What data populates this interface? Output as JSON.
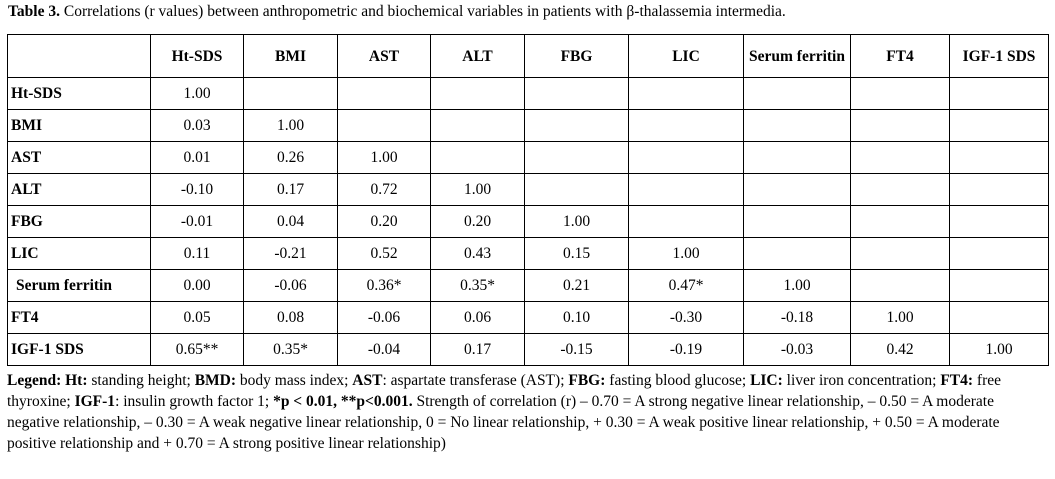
{
  "caption": {
    "label": "Table 3.",
    "text": " Correlations (r values) between anthropometric and biochemical variables  in patients with β-thalassemia intermedia."
  },
  "table": {
    "corner": "",
    "columns": [
      "Ht-SDS",
      "BMI",
      "AST",
      "ALT",
      "FBG",
      "LIC",
      "Serum ferritin",
      "FT4",
      "IGF-1 SDS"
    ],
    "rows": [
      {
        "label": "Ht-SDS",
        "cells": [
          "1.00",
          "",
          "",
          "",
          "",
          "",
          "",
          "",
          ""
        ]
      },
      {
        "label": "BMI",
        "cells": [
          "0.03",
          "1.00",
          "",
          "",
          "",
          "",
          "",
          "",
          ""
        ]
      },
      {
        "label": "AST",
        "cells": [
          "0.01",
          "0.26",
          "1.00",
          "",
          "",
          "",
          "",
          "",
          ""
        ]
      },
      {
        "label": "ALT",
        "cells": [
          "-0.10",
          "0.17",
          "0.72",
          "1.00",
          "",
          "",
          "",
          "",
          ""
        ]
      },
      {
        "label": "FBG",
        "cells": [
          "-0.01",
          "0.04",
          "0.20",
          "0.20",
          "1.00",
          "",
          "",
          "",
          ""
        ]
      },
      {
        "label": "LIC",
        "cells": [
          "0.11",
          "-0.21",
          "0.52",
          "0.43",
          "0.15",
          "1.00",
          "",
          "",
          ""
        ]
      },
      {
        "label": "Serum ferritin",
        "cells": [
          "0.00",
          "-0.06",
          "0.36*",
          "0.35*",
          "0.21",
          "0.47*",
          "1.00",
          "",
          ""
        ]
      },
      {
        "label": "FT4",
        "cells": [
          "0.05",
          "0.08",
          "-0.06",
          "0.06",
          "0.10",
          "-0.30",
          "-0.18",
          "1.00",
          ""
        ]
      },
      {
        "label": "IGF-1 SDS",
        "cells": [
          "0.65**",
          "0.35*",
          "-0.04",
          "0.17",
          "-0.15",
          "-0.19",
          "-0.03",
          "0.42",
          "1.00"
        ]
      }
    ]
  },
  "legend": {
    "segments": [
      {
        "text": "Legend: ",
        "bold": true
      },
      {
        "text": "Ht:",
        "bold": true
      },
      {
        "text": " standing height; ",
        "bold": false
      },
      {
        "text": "BMD:",
        "bold": true
      },
      {
        "text": " body mass index; ",
        "bold": false
      },
      {
        "text": "AST",
        "bold": true
      },
      {
        "text": ": aspartate transferase (AST); ",
        "bold": false
      },
      {
        "text": "FBG:",
        "bold": true
      },
      {
        "text": " fasting blood glucose; ",
        "bold": false
      },
      {
        "text": "LIC:",
        "bold": true
      },
      {
        "text": " liver iron concentration; ",
        "bold": false
      },
      {
        "text": "FT4:",
        "bold": true
      },
      {
        "text": " free thyroxine; ",
        "bold": false
      },
      {
        "text": "IGF-1",
        "bold": true
      },
      {
        "text": ": insulin growth factor 1; ",
        "bold": false
      },
      {
        "text": "*p < 0.01, **p<0.001.",
        "bold": true
      },
      {
        "text": " Strength of correlation (r) – 0.70 = A strong negative linear relationship,  – 0.50 = A moderate negative relationship,  – 0.30 = A weak negative linear relationship, 0 = No linear relationship, + 0.30 = A weak positive linear relationship, + 0.50 = A moderate positive relationship and + 0.70 = A strong positive linear relationship)",
        "bold": false
      }
    ]
  }
}
